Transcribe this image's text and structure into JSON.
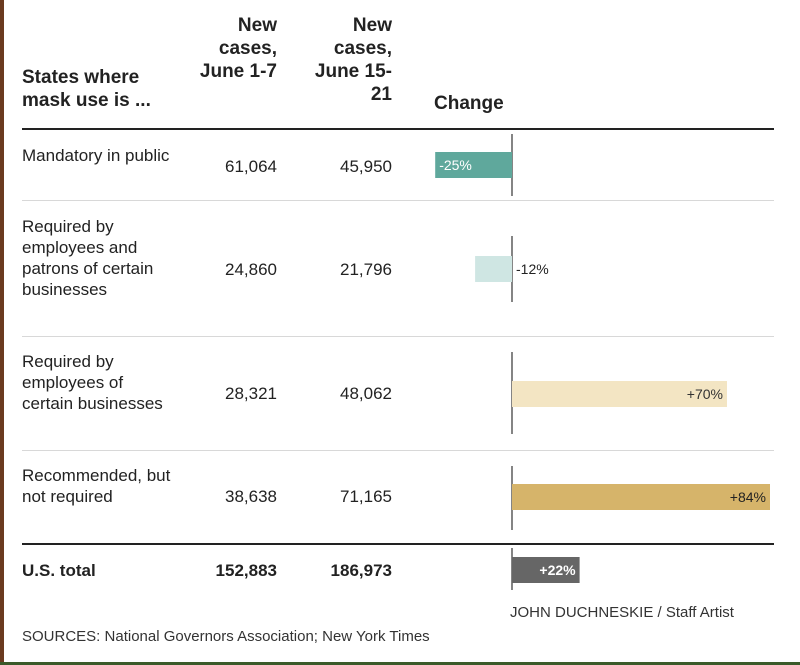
{
  "header": {
    "category": "States where mask use is ...",
    "period1": "New cases, June 1-7",
    "period2": "New cases, June 15-21",
    "change": "Change"
  },
  "rows": [
    {
      "label": "Mandatory in public",
      "june1_7": "61,064",
      "june15_21": "45,950",
      "change_label": "-25%"
    },
    {
      "label": "Required by employees and patrons of certain businesses",
      "june1_7": "24,860",
      "june15_21": "21,796",
      "change_label": "-12%"
    },
    {
      "label": "Required by employees of certain businesses",
      "june1_7": "28,321",
      "june15_21": "48,062",
      "change_label": "+70%"
    },
    {
      "label": "Recommended, but not required",
      "june1_7": "38,638",
      "june15_21": "71,165",
      "change_label": "+84%"
    }
  ],
  "total": {
    "label": "U.S. total",
    "june1_7": "152,883",
    "june15_21": "186,973",
    "change_label": "+22%"
  },
  "credit": "JOHN DUCHNESKIE / Staff Artist",
  "sources": "SOURCES: National Governors Association; New York Times",
  "colors": {
    "mandatory": "#5fa89c",
    "required_patrons": "#cfe6e3",
    "required_employees": "#f3e5c3",
    "recommended": "#d6b46a",
    "total": "#666666"
  },
  "chart_data": {
    "type": "bar",
    "orientation": "horizontal",
    "title": "",
    "xlabel": "Change",
    "categories": [
      "Mandatory in public",
      "Required by employees and patrons of certain businesses",
      "Required by employees of certain businesses",
      "Recommended, but not required",
      "U.S. total"
    ],
    "values": [
      -25,
      -12,
      70,
      84,
      22
    ],
    "unit": "%",
    "xlim": [
      -40,
      84
    ],
    "grid": false
  }
}
